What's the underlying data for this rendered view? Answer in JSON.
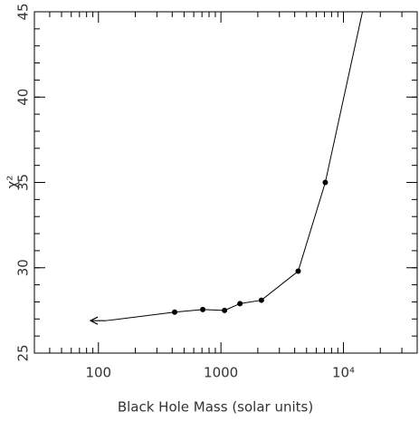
{
  "chart_data": {
    "type": "line",
    "x_label": "Black Hole Mass (solar units)",
    "y_label": "χ²",
    "x_scale": "log",
    "xlim": [
      30,
      40000
    ],
    "xticks": [
      100,
      1000,
      {
        "value": 10000,
        "label": "10⁴"
      }
    ],
    "ylim": [
      25,
      45
    ],
    "yticks": [
      25,
      30,
      35,
      40,
      45
    ],
    "x": [
      115,
      419,
      711,
      1070,
      1430,
      2140,
      4270,
      7110,
      14300
    ],
    "series": [
      {
        "color": "#000000",
        "values": [
          26.9,
          27.4,
          27.55,
          27.5,
          27.9,
          28.1,
          29.8,
          35.0,
          45
        ]
      }
    ]
  }
}
